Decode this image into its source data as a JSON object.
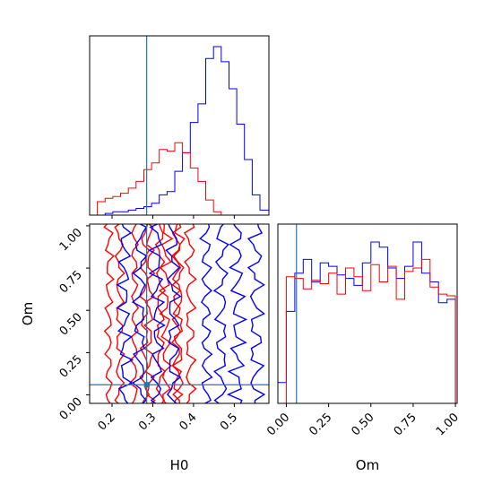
{
  "chart_data": {
    "type": "corner",
    "parameters": [
      "H0",
      "Om"
    ],
    "ranges": {
      "H0": [
        0.145,
        0.585
      ],
      "Om": [
        -0.05,
        1.01
      ]
    },
    "truths": {
      "H0": 0.285,
      "Om": 0.06
    },
    "colors": {
      "blue": "#0000ff",
      "red": "#ff0000",
      "truth": "#1f77b4",
      "axis": "#000000"
    },
    "marginal_H0": {
      "edges": [
        0.145,
        0.164,
        0.183,
        0.202,
        0.221,
        0.24,
        0.259,
        0.278,
        0.297,
        0.316,
        0.335,
        0.354,
        0.373,
        0.392,
        0.411,
        0.43,
        0.449,
        0.468,
        0.487,
        0.506,
        0.525,
        0.544,
        0.563,
        0.585
      ],
      "series": [
        {
          "color": "blue",
          "counts": [
            0,
            0,
            1,
            2,
            2,
            3,
            4,
            5,
            7,
            12,
            14,
            26,
            37,
            55,
            66,
            93,
            100,
            91,
            75,
            54,
            33,
            12,
            3
          ]
        },
        {
          "color": "red",
          "counts": [
            0,
            8,
            10,
            11,
            13,
            16,
            20,
            27,
            31,
            39,
            38,
            43,
            37,
            28,
            20,
            9,
            2,
            0,
            0,
            0,
            0,
            0,
            0
          ]
        }
      ]
    },
    "marginal_Om": {
      "edges": [
        -0.05,
        0.0,
        0.05,
        0.1,
        0.15,
        0.2,
        0.25,
        0.3,
        0.35,
        0.4,
        0.45,
        0.5,
        0.55,
        0.6,
        0.65,
        0.7,
        0.75,
        0.8,
        0.85,
        0.9,
        0.95,
        1.0,
        1.01
      ],
      "series": [
        {
          "color": "blue",
          "counts": [
            12,
            53,
            75,
            83,
            70,
            81,
            79,
            74,
            72,
            68,
            81,
            93,
            90,
            78,
            72,
            79,
            93,
            75,
            70,
            58,
            60,
            0
          ]
        },
        {
          "color": "red",
          "counts": [
            0,
            73,
            72,
            66,
            71,
            69,
            75,
            63,
            78,
            73,
            65,
            80,
            70,
            79,
            60,
            76,
            78,
            83,
            67,
            63,
            62,
            0
          ]
        }
      ]
    },
    "joint_H0_Om": {
      "contours": [
        {
          "color": "red",
          "x_center": 0.205,
          "y_center": 0.5,
          "half_width": 0.008
        },
        {
          "color": "red",
          "x_center": 0.268,
          "y_center": 0.5,
          "half_width": 0.008
        },
        {
          "color": "red",
          "x_center": 0.305,
          "y_center": 0.5,
          "half_width": 0.008
        },
        {
          "color": "red",
          "x_center": 0.348,
          "y_center": 0.5,
          "half_width": 0.01
        },
        {
          "color": "red",
          "x_center": 0.375,
          "y_center": 0.5,
          "half_width": 0.01
        },
        {
          "color": "blue",
          "x_center": 0.25,
          "y_center": 0.5,
          "half_width": 0.012
        },
        {
          "color": "blue",
          "x_center": 0.33,
          "y_center": 0.5,
          "half_width": 0.012
        },
        {
          "color": "blue",
          "x_center": 0.45,
          "y_center": 0.47,
          "half_width": 0.012
        },
        {
          "color": "blue",
          "x_center": 0.53,
          "y_center": 0.45,
          "half_width": 0.014
        }
      ]
    },
    "ticks": {
      "H0": {
        "values": [
          0.2,
          0.3,
          0.4,
          0.5
        ],
        "labels": [
          "0.2",
          "0.3",
          "0.4",
          "0.5"
        ]
      },
      "Om_y": {
        "values": [
          0.0,
          0.25,
          0.5,
          0.75,
          1.0
        ],
        "labels": [
          "0.00",
          "0.25",
          "0.50",
          "0.75",
          "1.00"
        ]
      },
      "Om_x": {
        "values": [
          0.0,
          0.25,
          0.5,
          0.75,
          1.0
        ],
        "labels": [
          "0.00",
          "0.25",
          "0.50",
          "0.75",
          "1.00"
        ]
      }
    },
    "xlabel_left": "H0",
    "xlabel_right": "Om",
    "ylabel": "Om",
    "grid": false,
    "legend": "none"
  }
}
